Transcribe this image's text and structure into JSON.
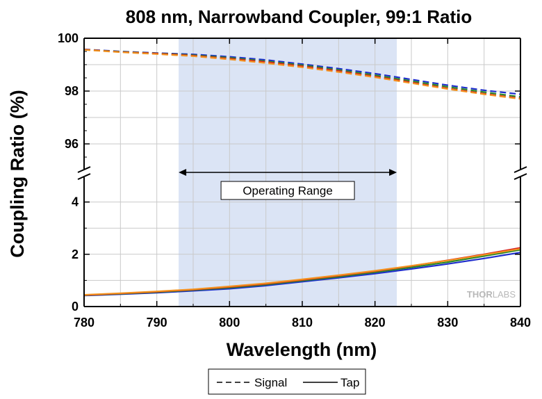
{
  "chart_data": {
    "type": "line",
    "title": "808 nm, Narrowband Coupler, 99:1 Ratio",
    "xlabel": "Wavelength (nm)",
    "ylabel": "Coupling Ratio (%)",
    "xlim": [
      780,
      840
    ],
    "x_ticks": [
      "780",
      "790",
      "800",
      "810",
      "820",
      "830",
      "840"
    ],
    "y_axis_break": true,
    "upper_panel": {
      "ylim": [
        95,
        100
      ],
      "y_ticks": [
        "96",
        "98",
        "100"
      ]
    },
    "lower_panel": {
      "ylim": [
        0,
        5
      ],
      "y_ticks": [
        "0",
        "2",
        "4"
      ]
    },
    "grid": true,
    "operating_range": {
      "x": [
        793,
        823
      ],
      "label": "Operating Range",
      "color": "#dbe4f5"
    },
    "legend": {
      "position": "bottom-center",
      "entries": [
        "Signal",
        "Tap"
      ]
    },
    "watermark": {
      "part1": "THOR",
      "part2": "LABS"
    },
    "x": [
      780,
      785,
      790,
      795,
      800,
      805,
      810,
      815,
      820,
      825,
      830,
      835,
      840
    ],
    "series": [
      {
        "name": "Signal",
        "style": "dashed",
        "panel": "upper",
        "color": "#1f2ecc",
        "values": [
          99.58,
          99.5,
          99.44,
          99.39,
          99.3,
          99.18,
          99.02,
          98.85,
          98.66,
          98.44,
          98.22,
          98.03,
          97.88
        ]
      },
      {
        "style": "dashed",
        "panel": "upper",
        "color": "#2a8a2a",
        "values": [
          99.57,
          99.49,
          99.43,
          99.36,
          99.26,
          99.13,
          98.98,
          98.8,
          98.6,
          98.38,
          98.16,
          97.96,
          97.78
        ]
      },
      {
        "style": "dashed",
        "panel": "upper",
        "color": "#d62020",
        "values": [
          99.57,
          99.48,
          99.42,
          99.34,
          99.23,
          99.1,
          98.94,
          98.76,
          98.55,
          98.33,
          98.1,
          97.9,
          97.72
        ]
      },
      {
        "style": "dashed",
        "panel": "upper",
        "color": "#f2921e",
        "values": [
          99.56,
          99.47,
          99.4,
          99.32,
          99.2,
          99.06,
          98.9,
          98.72,
          98.52,
          98.3,
          98.08,
          97.88,
          97.7
        ]
      },
      {
        "name": "Tap",
        "style": "solid",
        "panel": "lower",
        "color": "#1f2ecc",
        "values": [
          0.42,
          0.47,
          0.53,
          0.6,
          0.68,
          0.8,
          0.95,
          1.1,
          1.26,
          1.44,
          1.63,
          1.84,
          2.07
        ]
      },
      {
        "style": "solid",
        "panel": "lower",
        "color": "#2a8a2a",
        "values": [
          0.43,
          0.49,
          0.55,
          0.63,
          0.72,
          0.84,
          0.99,
          1.14,
          1.31,
          1.5,
          1.7,
          1.93,
          2.17
        ]
      },
      {
        "style": "solid",
        "panel": "lower",
        "color": "#d62020",
        "values": [
          0.44,
          0.5,
          0.57,
          0.65,
          0.75,
          0.87,
          1.02,
          1.18,
          1.35,
          1.55,
          1.77,
          2.0,
          2.25
        ]
      },
      {
        "style": "solid",
        "panel": "lower",
        "color": "#f2921e",
        "values": [
          0.45,
          0.51,
          0.58,
          0.66,
          0.77,
          0.89,
          1.04,
          1.2,
          1.37,
          1.56,
          1.76,
          1.98,
          2.21
        ]
      }
    ]
  }
}
